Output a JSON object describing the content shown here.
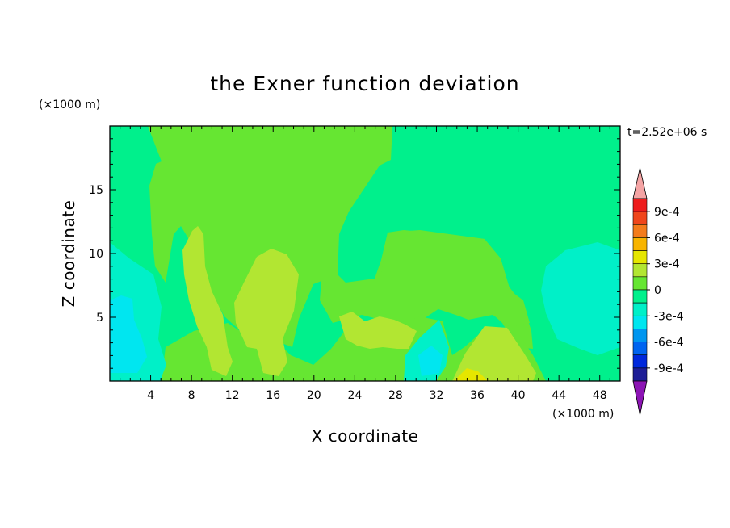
{
  "chart_data": {
    "type": "heatmap",
    "title": "the Exner function deviation",
    "xlabel": "X coordinate",
    "ylabel": "Z coordinate",
    "x_unit": "(×1000 m)",
    "y_unit": "(×1000 m)",
    "time_label": "t=2.52e+06 s",
    "xlim": [
      0,
      50
    ],
    "ylim": [
      0,
      20
    ],
    "x_ticks": [
      "4",
      "8",
      "12",
      "16",
      "20",
      "24",
      "28",
      "32",
      "36",
      "40",
      "44",
      "48"
    ],
    "y_ticks": [
      "5",
      "10",
      "15"
    ],
    "colorbar": {
      "labels": [
        "9e-4",
        "6e-4",
        "3e-4",
        "0",
        "-3e-4",
        "-6e-4",
        "-9e-4"
      ],
      "label_values": [
        0.0009,
        0.0006,
        0.0003,
        0,
        -0.0003,
        -0.0006,
        -0.0009
      ],
      "levels_top_to_bottom": [
        {
          "range": "> 1.05e-3",
          "color": "#f4a4a4"
        },
        {
          "range": "9e-4 to 1.05e-3",
          "color": "#ee1c1c"
        },
        {
          "range": "7.5e-4 to 9e-4",
          "color": "#f0461c"
        },
        {
          "range": "6e-4 to 7.5e-4",
          "color": "#f47c1c"
        },
        {
          "range": "4.5e-4 to 6e-4",
          "color": "#f8b400"
        },
        {
          "range": "3e-4 to 4.5e-4",
          "color": "#e6e600"
        },
        {
          "range": "1.5e-4 to 3e-4",
          "color": "#b2e632"
        },
        {
          "range": "0 to 1.5e-4",
          "color": "#66e632"
        },
        {
          "range": "-1.5e-4 to 0",
          "color": "#00f08c"
        },
        {
          "range": "-3e-4 to -1.5e-4",
          "color": "#00f0c8"
        },
        {
          "range": "-4.5e-4 to -3e-4",
          "color": "#00e6f0"
        },
        {
          "range": "-6e-4 to -4.5e-4",
          "color": "#0096f0"
        },
        {
          "range": "-7.5e-4 to -6e-4",
          "color": "#0064f0"
        },
        {
          "range": "-9e-4 to -7.5e-4",
          "color": "#0028dc"
        },
        {
          "range": "-1.05e-3 to -9e-4",
          "color": "#1e1e96"
        },
        {
          "range": "< -1.05e-3",
          "color": "#8c14b4"
        }
      ]
    },
    "regions": [
      {
        "name": "background",
        "value": -0.0001,
        "color": "#00f08c"
      },
      {
        "name": "upper-green-block",
        "value": 0.0001,
        "color": "#66e632"
      },
      {
        "name": "right-green-block",
        "value": 0.0001,
        "color": "#66e632"
      },
      {
        "name": "lower-green-band",
        "value": 0.0001,
        "color": "#66e632"
      },
      {
        "name": "plume-left",
        "value": 0.0002,
        "color": "#b2e632"
      },
      {
        "name": "plume-mid",
        "value": 0.0002,
        "color": "#b2e632"
      },
      {
        "name": "plume-right",
        "value": 0.0002,
        "color": "#b2e632"
      },
      {
        "name": "plume-bottom",
        "value": 0.0002,
        "color": "#b2e632"
      },
      {
        "name": "yellow-spot-bottom",
        "value": 0.0003,
        "color": "#e6e600"
      },
      {
        "name": "cyan-left",
        "value": -0.0002,
        "color": "#00f0c8"
      },
      {
        "name": "cyan-right",
        "value": -0.0002,
        "color": "#00f0c8"
      },
      {
        "name": "cyan-bottom",
        "value": -0.0002,
        "color": "#00f0c8"
      },
      {
        "name": "aqua-left",
        "value": -0.0004,
        "color": "#00e6f0"
      },
      {
        "name": "aqua-bottom",
        "value": -0.0004,
        "color": "#00e6f0"
      }
    ]
  }
}
